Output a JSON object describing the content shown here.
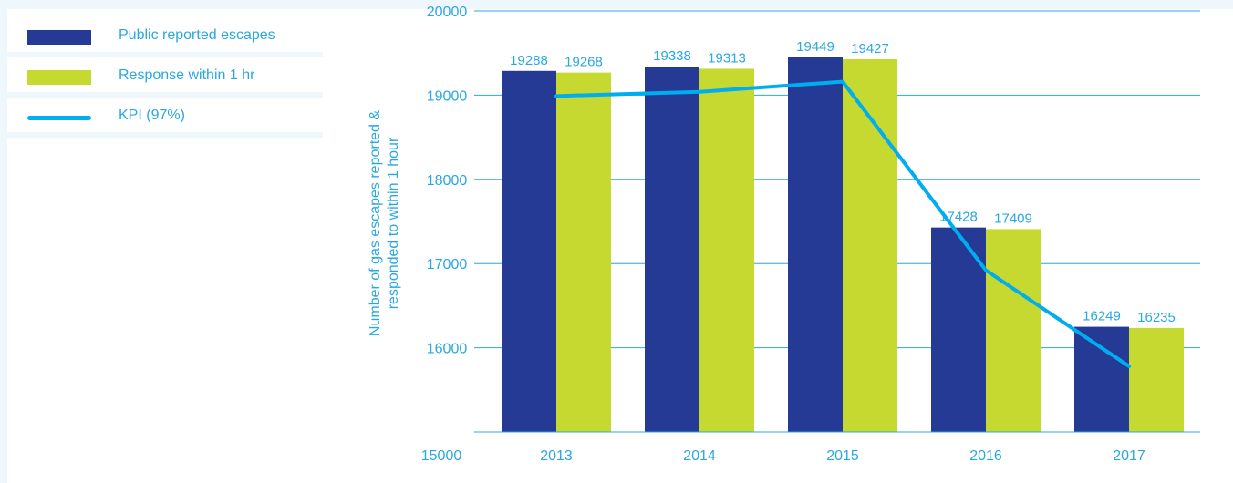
{
  "legend": {
    "items": [
      {
        "label": "Public reported escapes",
        "color": "#253a94",
        "kind": "bar"
      },
      {
        "label": "Response within 1 hr",
        "color": "#c5d930",
        "kind": "bar"
      },
      {
        "label": "KPI (97%)",
        "color": "#00aeef",
        "kind": "line"
      }
    ]
  },
  "chart_data": {
    "type": "bar",
    "title": "",
    "xlabel": "",
    "ylabel": "Number of gas escapes reported & responded to within 1 hour",
    "ylim": [
      15000,
      20000
    ],
    "yticks": [
      15000,
      16000,
      17000,
      18000,
      19000,
      20000
    ],
    "categories": [
      "2013",
      "2014",
      "2015",
      "2016",
      "2017"
    ],
    "series": [
      {
        "name": "Public reported escapes",
        "color": "#253a94",
        "values": [
          19288,
          19338,
          19449,
          17428,
          16249
        ]
      },
      {
        "name": "Response within 1 hr",
        "color": "#c5d930",
        "values": [
          19268,
          19313,
          19427,
          17409,
          16235
        ]
      }
    ],
    "kpi_line": {
      "name": "KPI (97%)",
      "color": "#00aeef",
      "values": [
        18990,
        19040,
        19160,
        16920,
        15780
      ]
    },
    "grid": true,
    "legend_position": "top-left"
  }
}
